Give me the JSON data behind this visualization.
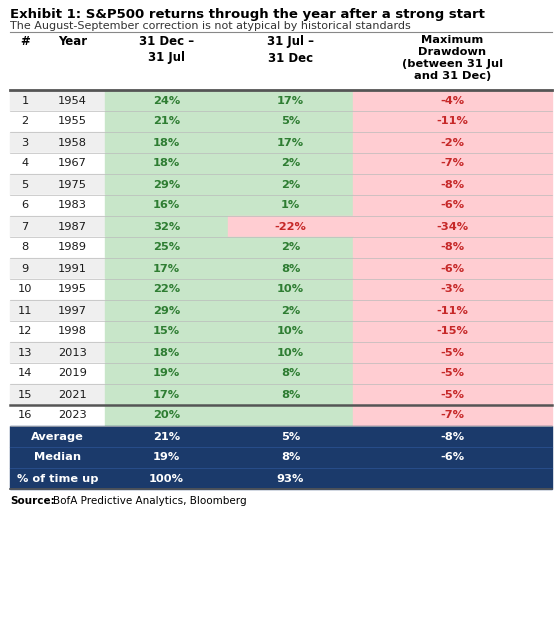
{
  "title": "Exhibit 1: S&P500 returns through the year after a strong start",
  "subtitle": "The August-September correction is not atypical by historical standards",
  "col_headers_line1": [
    "#",
    "Year",
    "31 Dec –",
    "31 Jul –",
    "Maximum"
  ],
  "col_headers_line2": [
    "",
    "",
    "31 Jul",
    "31 Dec",
    "Drawdown"
  ],
  "col_headers_line3": [
    "",
    "",
    "",
    "",
    "(between 31 Jul"
  ],
  "col_headers_line4": [
    "",
    "",
    "",
    "",
    "and 31 Dec)"
  ],
  "rows": [
    [
      "1",
      "1954",
      "24%",
      "17%",
      "-4%"
    ],
    [
      "2",
      "1955",
      "21%",
      "5%",
      "-11%"
    ],
    [
      "3",
      "1958",
      "18%",
      "17%",
      "-2%"
    ],
    [
      "4",
      "1967",
      "18%",
      "2%",
      "-7%"
    ],
    [
      "5",
      "1975",
      "29%",
      "2%",
      "-8%"
    ],
    [
      "6",
      "1983",
      "16%",
      "1%",
      "-6%"
    ],
    [
      "7",
      "1987",
      "32%",
      "-22%",
      "-34%"
    ],
    [
      "8",
      "1989",
      "25%",
      "2%",
      "-8%"
    ],
    [
      "9",
      "1991",
      "17%",
      "8%",
      "-6%"
    ],
    [
      "10",
      "1995",
      "22%",
      "10%",
      "-3%"
    ],
    [
      "11",
      "1997",
      "29%",
      "2%",
      "-11%"
    ],
    [
      "12",
      "1998",
      "15%",
      "10%",
      "-15%"
    ],
    [
      "13",
      "2013",
      "18%",
      "10%",
      "-5%"
    ],
    [
      "14",
      "2019",
      "19%",
      "8%",
      "-5%"
    ],
    [
      "15",
      "2021",
      "17%",
      "8%",
      "-5%"
    ],
    [
      "16",
      "2023",
      "20%",
      "",
      "-7%"
    ]
  ],
  "summary_rows": [
    [
      "Average",
      "21%",
      "5%",
      "-8%"
    ],
    [
      "Median",
      "19%",
      "8%",
      "-6%"
    ],
    [
      "% of time up",
      "100%",
      "93%",
      ""
    ]
  ],
  "green_bg": "#c8e6c9",
  "pink_bg": "#ffcdd2",
  "summary_bg": "#1b3a6b",
  "summary_text": "#ffffff",
  "green_text": "#2e7d32",
  "red_text": "#c62828",
  "dark_text": "#1a1a1a",
  "row_odd_bg": "#efefef",
  "row_even_bg": "#ffffff",
  "header_line_color": "#555555",
  "divider_color": "#bbbbbb"
}
